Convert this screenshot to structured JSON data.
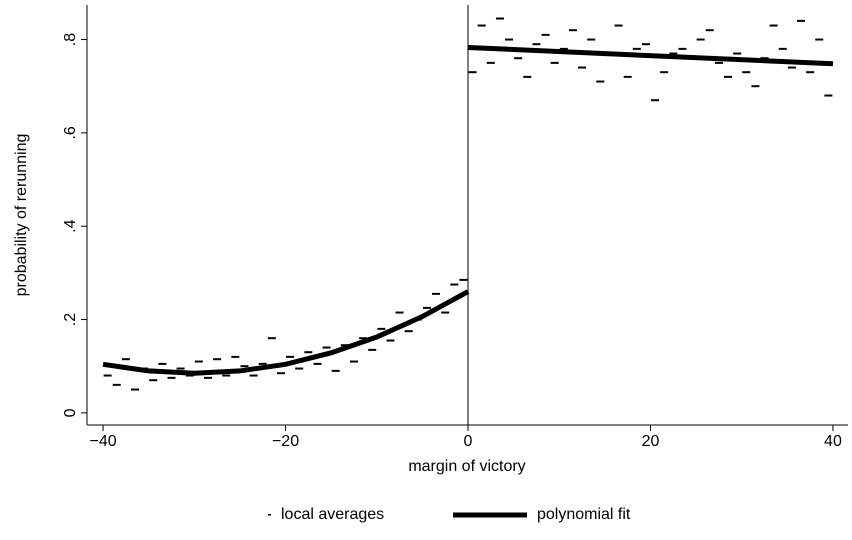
{
  "chart_data": {
    "type": "scatter",
    "xlabel": "margin of victory",
    "ylabel": "probability of rerunning",
    "xlim": [
      -41.76,
      41.65
    ],
    "ylim": [
      -0.026,
      0.874
    ],
    "xticks": [
      {
        "value": -40,
        "label": "−40"
      },
      {
        "value": -20,
        "label": "−20"
      },
      0,
      20,
      40
    ],
    "yticks": [
      0,
      {
        "value": 0.2,
        "label": ".2"
      },
      {
        "value": 0.4,
        "label": ".4"
      },
      {
        "value": 0.6,
        "label": ".6"
      },
      {
        "value": 0.8,
        "label": ".8"
      }
    ],
    "xline": 0,
    "legend": "bottom",
    "series": [
      {
        "name": "local averages",
        "type": "scatter",
        "marker": "dash",
        "color": "#000000",
        "x": [
          -39.5,
          -38.5,
          -37.5,
          -36.5,
          -35.5,
          -34.5,
          -33.5,
          -32.5,
          -31.5,
          -30.5,
          -29.5,
          -28.5,
          -27.5,
          -26.5,
          -25.5,
          -24.5,
          -23.5,
          -22.5,
          -21.5,
          -20.5,
          -19.5,
          -18.5,
          -17.5,
          -16.5,
          -15.5,
          -14.5,
          -13.5,
          -12.5,
          -11.5,
          -10.5,
          -9.5,
          -8.5,
          -7.5,
          -6.5,
          -5.5,
          -4.5,
          -3.5,
          -2.5,
          -1.5,
          -0.5,
          0.5,
          1.5,
          2.5,
          3.5,
          4.5,
          5.5,
          6.5,
          7.5,
          8.5,
          9.5,
          10.5,
          11.5,
          12.5,
          13.5,
          14.5,
          15.5,
          16.5,
          17.5,
          18.5,
          19.5,
          20.5,
          21.5,
          22.5,
          23.5,
          24.5,
          25.5,
          26.5,
          27.5,
          28.5,
          29.5,
          30.5,
          31.5,
          32.5,
          33.5,
          34.5,
          35.5,
          36.5,
          37.5,
          38.5,
          39.5
        ],
        "values": [
          0.08,
          0.06,
          0.115,
          0.05,
          0.095,
          0.07,
          0.105,
          0.075,
          0.095,
          0.08,
          0.11,
          0.075,
          0.115,
          0.08,
          0.12,
          0.1,
          0.08,
          0.105,
          0.16,
          0.085,
          0.12,
          0.095,
          0.13,
          0.105,
          0.14,
          0.09,
          0.145,
          0.11,
          0.16,
          0.135,
          0.18,
          0.155,
          0.215,
          0.175,
          0.2,
          0.225,
          0.255,
          0.215,
          0.275,
          0.285,
          0.73,
          0.83,
          0.75,
          0.845,
          0.8,
          0.76,
          0.72,
          0.79,
          0.81,
          0.75,
          0.78,
          0.82,
          0.74,
          0.8,
          0.71,
          0.77,
          0.83,
          0.72,
          0.78,
          0.79,
          0.67,
          0.73,
          0.77,
          0.78,
          0.76,
          0.8,
          0.82,
          0.75,
          0.72,
          0.77,
          0.73,
          0.7,
          0.76,
          0.83,
          0.78,
          0.74,
          0.84,
          0.73,
          0.8,
          0.68
        ]
      },
      {
        "name": "polynomial fit",
        "type": "line",
        "color": "#000000",
        "x": [
          -40,
          -35,
          -30,
          -25,
          -20,
          -15,
          -10,
          -5,
          0,
          0,
          0,
          40
        ],
        "values": [
          0.104,
          0.0899,
          0.085,
          0.0899,
          0.104,
          0.1287,
          0.1626,
          0.2064,
          0.26,
          null,
          0.783,
          0.748
        ]
      }
    ]
  }
}
